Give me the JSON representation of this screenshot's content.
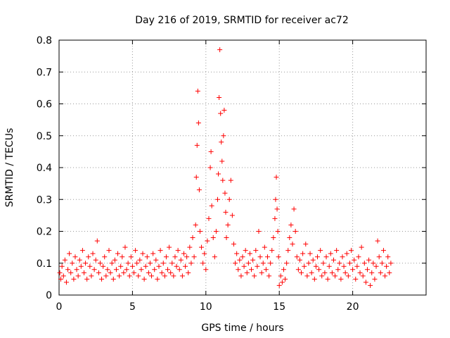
{
  "chart_data": {
    "type": "scatter",
    "title": "Day 216 of 2019, SRMTID for receiver ac72",
    "xlabel": "GPS time / hours",
    "ylabel": "SRMTID / TECUs",
    "xlim": [
      0,
      25
    ],
    "ylim": [
      0,
      0.8
    ],
    "xticks": [
      0,
      5,
      10,
      15,
      20
    ],
    "yticks": [
      0,
      0.1,
      0.2,
      0.3,
      0.4,
      0.5,
      0.6,
      0.7,
      0.8
    ],
    "grid": true,
    "marker": "+",
    "color": "#ff0000",
    "series": [
      {
        "name": "SRMTID",
        "points": [
          [
            0.05,
            0.07
          ],
          [
            0.12,
            0.05
          ],
          [
            0.2,
            0.09
          ],
          [
            0.3,
            0.06
          ],
          [
            0.4,
            0.11
          ],
          [
            0.5,
            0.04
          ],
          [
            0.6,
            0.08
          ],
          [
            0.7,
            0.13
          ],
          [
            0.8,
            0.07
          ],
          [
            0.9,
            0.1
          ],
          [
            1.0,
            0.05
          ],
          [
            1.1,
            0.12
          ],
          [
            1.2,
            0.08
          ],
          [
            1.3,
            0.06
          ],
          [
            1.4,
            0.11
          ],
          [
            1.5,
            0.09
          ],
          [
            1.6,
            0.14
          ],
          [
            1.7,
            0.07
          ],
          [
            1.8,
            0.1
          ],
          [
            1.9,
            0.05
          ],
          [
            2.0,
            0.12
          ],
          [
            2.1,
            0.09
          ],
          [
            2.2,
            0.06
          ],
          [
            2.3,
            0.13
          ],
          [
            2.4,
            0.08
          ],
          [
            2.5,
            0.11
          ],
          [
            2.6,
            0.17
          ],
          [
            2.7,
            0.07
          ],
          [
            2.8,
            0.1
          ],
          [
            2.9,
            0.05
          ],
          [
            3.0,
            0.09
          ],
          [
            3.1,
            0.12
          ],
          [
            3.2,
            0.06
          ],
          [
            3.3,
            0.08
          ],
          [
            3.4,
            0.14
          ],
          [
            3.5,
            0.07
          ],
          [
            3.6,
            0.1
          ],
          [
            3.7,
            0.05
          ],
          [
            3.8,
            0.11
          ],
          [
            3.9,
            0.08
          ],
          [
            4.0,
            0.13
          ],
          [
            4.1,
            0.06
          ],
          [
            4.2,
            0.09
          ],
          [
            4.3,
            0.12
          ],
          [
            4.4,
            0.07
          ],
          [
            4.5,
            0.15
          ],
          [
            4.6,
            0.08
          ],
          [
            4.7,
            0.1
          ],
          [
            4.8,
            0.06
          ],
          [
            4.9,
            0.12
          ],
          [
            5.0,
            0.09
          ],
          [
            5.1,
            0.07
          ],
          [
            5.2,
            0.14
          ],
          [
            5.3,
            0.1
          ],
          [
            5.4,
            0.06
          ],
          [
            5.5,
            0.11
          ],
          [
            5.6,
            0.08
          ],
          [
            5.7,
            0.13
          ],
          [
            5.8,
            0.05
          ],
          [
            5.9,
            0.09
          ],
          [
            6.0,
            0.12
          ],
          [
            6.1,
            0.07
          ],
          [
            6.2,
            0.1
          ],
          [
            6.3,
            0.06
          ],
          [
            6.4,
            0.13
          ],
          [
            6.5,
            0.08
          ],
          [
            6.6,
            0.11
          ],
          [
            6.7,
            0.05
          ],
          [
            6.8,
            0.09
          ],
          [
            6.9,
            0.14
          ],
          [
            7.0,
            0.07
          ],
          [
            7.1,
            0.1
          ],
          [
            7.2,
            0.06
          ],
          [
            7.3,
            0.12
          ],
          [
            7.4,
            0.08
          ],
          [
            7.5,
            0.15
          ],
          [
            7.6,
            0.07
          ],
          [
            7.7,
            0.1
          ],
          [
            7.8,
            0.06
          ],
          [
            7.9,
            0.12
          ],
          [
            8.0,
            0.09
          ],
          [
            8.1,
            0.14
          ],
          [
            8.2,
            0.08
          ],
          [
            8.3,
            0.11
          ],
          [
            8.4,
            0.06
          ],
          [
            8.5,
            0.13
          ],
          [
            8.6,
            0.09
          ],
          [
            8.7,
            0.12
          ],
          [
            8.8,
            0.07
          ],
          [
            8.9,
            0.15
          ],
          [
            9.0,
            0.1
          ],
          [
            9.1,
            0.18
          ],
          [
            9.2,
            0.12
          ],
          [
            9.3,
            0.22
          ],
          [
            9.35,
            0.37
          ],
          [
            9.4,
            0.47
          ],
          [
            9.45,
            0.64
          ],
          [
            9.5,
            0.54
          ],
          [
            9.55,
            0.33
          ],
          [
            9.6,
            0.2
          ],
          [
            9.7,
            0.15
          ],
          [
            9.8,
            0.1
          ],
          [
            9.9,
            0.13
          ],
          [
            10.0,
            0.08
          ],
          [
            10.1,
            0.17
          ],
          [
            10.2,
            0.24
          ],
          [
            10.3,
            0.4
          ],
          [
            10.35,
            0.45
          ],
          [
            10.4,
            0.28
          ],
          [
            10.5,
            0.18
          ],
          [
            10.6,
            0.12
          ],
          [
            10.7,
            0.2
          ],
          [
            10.8,
            0.3
          ],
          [
            10.85,
            0.38
          ],
          [
            10.9,
            0.62
          ],
          [
            10.95,
            0.77
          ],
          [
            11.0,
            0.57
          ],
          [
            11.05,
            0.48
          ],
          [
            11.1,
            0.42
          ],
          [
            11.15,
            0.36
          ],
          [
            11.2,
            0.5
          ],
          [
            11.25,
            0.58
          ],
          [
            11.3,
            0.32
          ],
          [
            11.35,
            0.26
          ],
          [
            11.4,
            0.18
          ],
          [
            11.5,
            0.22
          ],
          [
            11.6,
            0.3
          ],
          [
            11.7,
            0.36
          ],
          [
            11.8,
            0.25
          ],
          [
            11.9,
            0.16
          ],
          [
            12.0,
            0.1
          ],
          [
            12.1,
            0.13
          ],
          [
            12.2,
            0.08
          ],
          [
            12.3,
            0.11
          ],
          [
            12.4,
            0.06
          ],
          [
            12.5,
            0.12
          ],
          [
            12.6,
            0.09
          ],
          [
            12.7,
            0.14
          ],
          [
            12.8,
            0.07
          ],
          [
            12.9,
            0.1
          ],
          [
            13.0,
            0.13
          ],
          [
            13.1,
            0.08
          ],
          [
            13.2,
            0.11
          ],
          [
            13.3,
            0.06
          ],
          [
            13.4,
            0.14
          ],
          [
            13.5,
            0.09
          ],
          [
            13.6,
            0.2
          ],
          [
            13.7,
            0.12
          ],
          [
            13.8,
            0.07
          ],
          [
            13.9,
            0.1
          ],
          [
            14.0,
            0.15
          ],
          [
            14.1,
            0.08
          ],
          [
            14.2,
            0.12
          ],
          [
            14.3,
            0.06
          ],
          [
            14.4,
            0.1
          ],
          [
            14.5,
            0.14
          ],
          [
            14.6,
            0.18
          ],
          [
            14.7,
            0.24
          ],
          [
            14.75,
            0.3
          ],
          [
            14.8,
            0.37
          ],
          [
            14.85,
            0.27
          ],
          [
            14.9,
            0.2
          ],
          [
            14.95,
            0.12
          ],
          [
            15.0,
            0.03
          ],
          [
            15.1,
            0.06
          ],
          [
            15.2,
            0.04
          ],
          [
            15.3,
            0.08
          ],
          [
            15.4,
            0.05
          ],
          [
            15.5,
            0.1
          ],
          [
            15.6,
            0.14
          ],
          [
            15.7,
            0.18
          ],
          [
            15.8,
            0.22
          ],
          [
            15.9,
            0.16
          ],
          [
            16.0,
            0.27
          ],
          [
            16.1,
            0.2
          ],
          [
            16.2,
            0.12
          ],
          [
            16.3,
            0.08
          ],
          [
            16.4,
            0.11
          ],
          [
            16.5,
            0.07
          ],
          [
            16.6,
            0.13
          ],
          [
            16.7,
            0.09
          ],
          [
            16.8,
            0.16
          ],
          [
            16.9,
            0.06
          ],
          [
            17.0,
            0.1
          ],
          [
            17.1,
            0.13
          ],
          [
            17.2,
            0.07
          ],
          [
            17.3,
            0.11
          ],
          [
            17.4,
            0.05
          ],
          [
            17.5,
            0.09
          ],
          [
            17.6,
            0.12
          ],
          [
            17.7,
            0.08
          ],
          [
            17.8,
            0.14
          ],
          [
            17.9,
            0.06
          ],
          [
            18.0,
            0.1
          ],
          [
            18.1,
            0.07
          ],
          [
            18.2,
            0.12
          ],
          [
            18.3,
            0.05
          ],
          [
            18.4,
            0.09
          ],
          [
            18.5,
            0.13
          ],
          [
            18.6,
            0.07
          ],
          [
            18.7,
            0.11
          ],
          [
            18.8,
            0.06
          ],
          [
            18.9,
            0.14
          ],
          [
            19.0,
            0.08
          ],
          [
            19.1,
            0.1
          ],
          [
            19.2,
            0.05
          ],
          [
            19.3,
            0.12
          ],
          [
            19.4,
            0.09
          ],
          [
            19.5,
            0.07
          ],
          [
            19.6,
            0.13
          ],
          [
            19.7,
            0.06
          ],
          [
            19.8,
            0.1
          ],
          [
            19.9,
            0.14
          ],
          [
            20.0,
            0.08
          ],
          [
            20.1,
            0.11
          ],
          [
            20.2,
            0.05
          ],
          [
            20.3,
            0.09
          ],
          [
            20.4,
            0.12
          ],
          [
            20.5,
            0.07
          ],
          [
            20.6,
            0.15
          ],
          [
            20.7,
            0.06
          ],
          [
            20.8,
            0.1
          ],
          [
            20.9,
            0.04
          ],
          [
            21.0,
            0.08
          ],
          [
            21.1,
            0.11
          ],
          [
            21.2,
            0.03
          ],
          [
            21.3,
            0.07
          ],
          [
            21.4,
            0.1
          ],
          [
            21.5,
            0.05
          ],
          [
            21.6,
            0.09
          ],
          [
            21.7,
            0.17
          ],
          [
            21.8,
            0.12
          ],
          [
            21.9,
            0.07
          ],
          [
            22.0,
            0.1
          ],
          [
            22.1,
            0.14
          ],
          [
            22.2,
            0.06
          ],
          [
            22.3,
            0.09
          ],
          [
            22.4,
            0.12
          ],
          [
            22.5,
            0.07
          ],
          [
            22.6,
            0.1
          ]
        ]
      }
    ]
  }
}
